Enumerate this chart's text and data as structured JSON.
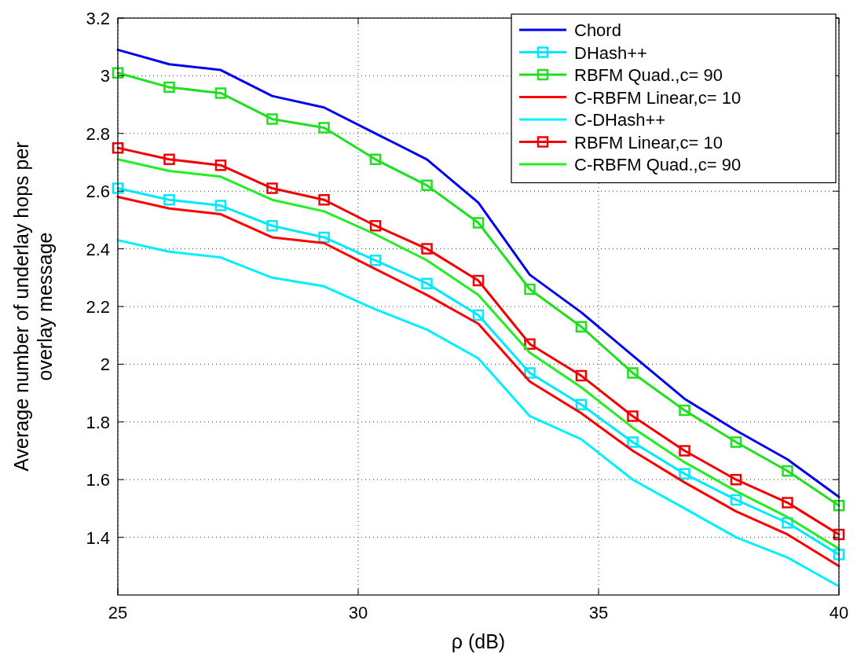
{
  "chart_data": {
    "type": "line",
    "xlabel": "ρ (dB)",
    "ylabel": "Average number of underlay hops per overlay message",
    "x": [
      25,
      26.07,
      27.14,
      28.21,
      29.29,
      30.36,
      31.43,
      32.5,
      33.57,
      34.64,
      35.71,
      36.79,
      37.86,
      38.93,
      40
    ],
    "xlim": [
      25,
      40
    ],
    "xticks": [
      25,
      30,
      35,
      40
    ],
    "ylim": [
      1.2,
      3.2
    ],
    "yticks": [
      1.4,
      1.6,
      1.8,
      2,
      2.2,
      2.4,
      2.6,
      2.8,
      3,
      3.2
    ],
    "grid": true,
    "legend": "top right",
    "line_style": "solid",
    "series": [
      {
        "name": "Chord",
        "color": "#0000f0",
        "marker": "none",
        "values": [
          3.09,
          3.04,
          3.02,
          2.93,
          2.89,
          2.8,
          2.71,
          2.56,
          2.31,
          2.18,
          2.03,
          1.88,
          1.77,
          1.67,
          1.54
        ]
      },
      {
        "name": "DHash++",
        "color": "#00e8ff",
        "marker": "square",
        "values": [
          2.61,
          2.57,
          2.55,
          2.48,
          2.44,
          2.36,
          2.28,
          2.17,
          1.97,
          1.86,
          1.73,
          1.62,
          1.53,
          1.45,
          1.34
        ]
      },
      {
        "name": "RBFM Quad.,c= 90",
        "color": "#1fe01f",
        "marker": "square",
        "values": [
          3.01,
          2.96,
          2.94,
          2.85,
          2.82,
          2.71,
          2.62,
          2.49,
          2.26,
          2.13,
          1.97,
          1.84,
          1.73,
          1.63,
          1.51
        ]
      },
      {
        "name": "C-RBFM Linear,c= 10",
        "color": "#ff0000",
        "marker": "none",
        "values": [
          2.58,
          2.54,
          2.52,
          2.44,
          2.42,
          2.33,
          2.24,
          2.14,
          1.94,
          1.83,
          1.7,
          1.59,
          1.49,
          1.41,
          1.3
        ]
      },
      {
        "name": "C-DHash++",
        "color": "#00f0ff",
        "marker": "none",
        "values": [
          2.43,
          2.39,
          2.37,
          2.3,
          2.27,
          2.19,
          2.12,
          2.02,
          1.82,
          1.74,
          1.6,
          1.5,
          1.4,
          1.33,
          1.23
        ]
      },
      {
        "name": "RBFM Linear,c= 10",
        "color": "#f00000",
        "marker": "square",
        "values": [
          2.75,
          2.71,
          2.69,
          2.61,
          2.57,
          2.48,
          2.4,
          2.29,
          2.07,
          1.96,
          1.82,
          1.7,
          1.6,
          1.52,
          1.41
        ]
      },
      {
        "name": "C-RBFM Quad.,c= 90",
        "color": "#22ee22",
        "marker": "none",
        "values": [
          2.71,
          2.67,
          2.65,
          2.57,
          2.53,
          2.45,
          2.36,
          2.24,
          2.04,
          1.92,
          1.78,
          1.66,
          1.56,
          1.47,
          1.36
        ]
      }
    ]
  }
}
